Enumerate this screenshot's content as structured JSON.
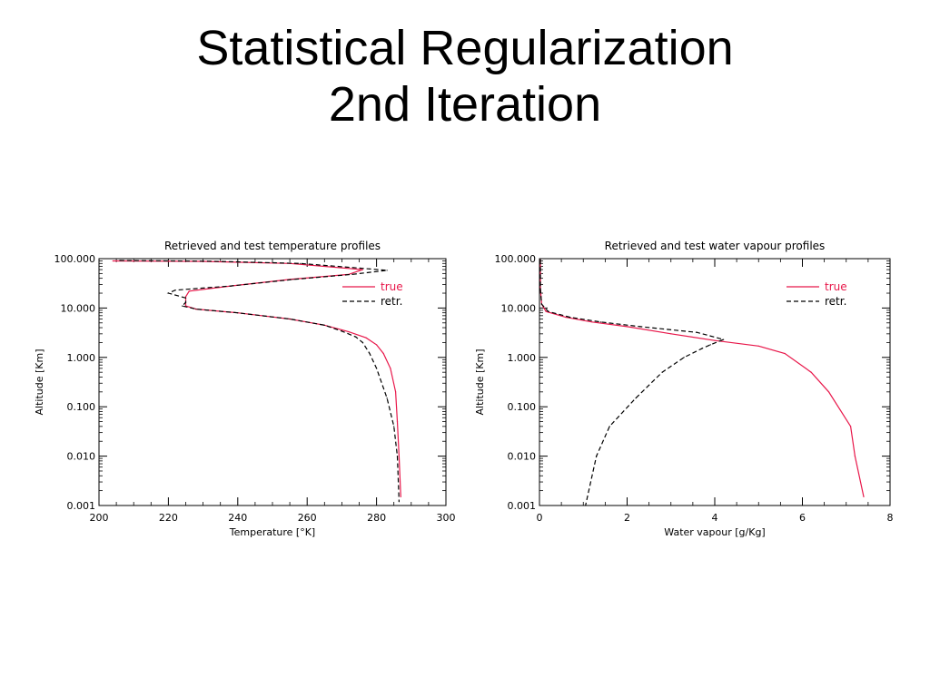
{
  "slide": {
    "title_line1": "Statistical Regularization",
    "title_line2": "2nd Iteration"
  },
  "chart_data": [
    {
      "type": "line",
      "title": "Retrieved and test temperature profiles",
      "xlabel": "Temperature [°K]",
      "ylabel": "Altitude [Km]",
      "xlim": [
        200,
        300
      ],
      "ylim": [
        0.001,
        100
      ],
      "yscale": "log",
      "xticks": [
        "200",
        "220",
        "240",
        "260",
        "280",
        "300"
      ],
      "yticks": [
        "0.001",
        "0.010",
        "0.100",
        "1.000",
        "10.000",
        "100.000"
      ],
      "legend_position": "top-right",
      "series": [
        {
          "name": "true",
          "color": "#e8174a",
          "dash": "solid",
          "points": [
            [
              204,
              90
            ],
            [
              230,
              88
            ],
            [
              255,
              80
            ],
            [
              276,
              60
            ],
            [
              272,
              48
            ],
            [
              255,
              38
            ],
            [
              238,
              28
            ],
            [
              226,
              22
            ],
            [
              225,
              17
            ],
            [
              225,
              11
            ],
            [
              228,
              9.5
            ],
            [
              240,
              8
            ],
            [
              255,
              6
            ],
            [
              265,
              4.5
            ],
            [
              272,
              3.3
            ],
            [
              277,
              2.5
            ],
            [
              280,
              1.8
            ],
            [
              282,
              1.2
            ],
            [
              284,
              0.6
            ],
            [
              285.5,
              0.2
            ],
            [
              286,
              0.05
            ],
            [
              286.5,
              0.01
            ],
            [
              287,
              0.0015
            ]
          ]
        },
        {
          "name": "retr.",
          "color": "#000000",
          "dash": "dashed",
          "points": [
            [
              206,
              92
            ],
            [
              232,
              89
            ],
            [
              258,
              80
            ],
            [
              278,
              62
            ],
            [
              283,
              58
            ],
            [
              273,
              48
            ],
            [
              256,
              38
            ],
            [
              238,
              28
            ],
            [
              222,
              23
            ],
            [
              220,
              20
            ],
            [
              225,
              16
            ],
            [
              225,
              13
            ],
            [
              224,
              11
            ],
            [
              228,
              9.5
            ],
            [
              240,
              8
            ],
            [
              255,
              6
            ],
            [
              265,
              4.5
            ],
            [
              270,
              3.4
            ],
            [
              274,
              2.6
            ],
            [
              276,
              2.0
            ],
            [
              278,
              1.2
            ],
            [
              280,
              0.6
            ],
            [
              283,
              0.15
            ],
            [
              285,
              0.04
            ],
            [
              286,
              0.01
            ],
            [
              286.5,
              0.0012
            ]
          ]
        }
      ]
    },
    {
      "type": "line",
      "title": "Retrieved and test water vapour profiles",
      "xlabel": "Water vapour [g/Kg]",
      "ylabel": "Altitude [Km]",
      "xlim": [
        0,
        8
      ],
      "ylim": [
        0.001,
        100
      ],
      "yscale": "log",
      "xticks": [
        "0",
        "2",
        "4",
        "6",
        "8"
      ],
      "yticks": [
        "0.001",
        "0.010",
        "0.100",
        "1.000",
        "10.000",
        "100.000"
      ],
      "legend_position": "top-right",
      "series": [
        {
          "name": "true",
          "color": "#e8174a",
          "dash": "solid",
          "points": [
            [
              0.02,
              95
            ],
            [
              0.02,
              25
            ],
            [
              0.05,
              12
            ],
            [
              0.15,
              8.5
            ],
            [
              0.6,
              6.5
            ],
            [
              1.2,
              5.2
            ],
            [
              2.0,
              4.2
            ],
            [
              3.0,
              3.0
            ],
            [
              4.0,
              2.2
            ],
            [
              5.0,
              1.7
            ],
            [
              5.6,
              1.2
            ],
            [
              6.2,
              0.5
            ],
            [
              6.6,
              0.2
            ],
            [
              7.1,
              0.04
            ],
            [
              7.2,
              0.01
            ],
            [
              7.4,
              0.0015
            ]
          ]
        },
        {
          "name": "retr.",
          "color": "#000000",
          "dash": "dashed",
          "points": [
            [
              0.02,
              95
            ],
            [
              0.02,
              25
            ],
            [
              0.05,
              12
            ],
            [
              0.2,
              8.5
            ],
            [
              0.7,
              6.5
            ],
            [
              1.4,
              5.2
            ],
            [
              2.3,
              4.2
            ],
            [
              3.6,
              3.2
            ],
            [
              4.2,
              2.3
            ],
            [
              3.9,
              1.8
            ],
            [
              3.7,
              1.5
            ],
            [
              3.3,
              1.0
            ],
            [
              2.8,
              0.5
            ],
            [
              2.2,
              0.15
            ],
            [
              1.6,
              0.04
            ],
            [
              1.3,
              0.01
            ],
            [
              1.05,
              0.001
            ]
          ]
        }
      ]
    }
  ]
}
